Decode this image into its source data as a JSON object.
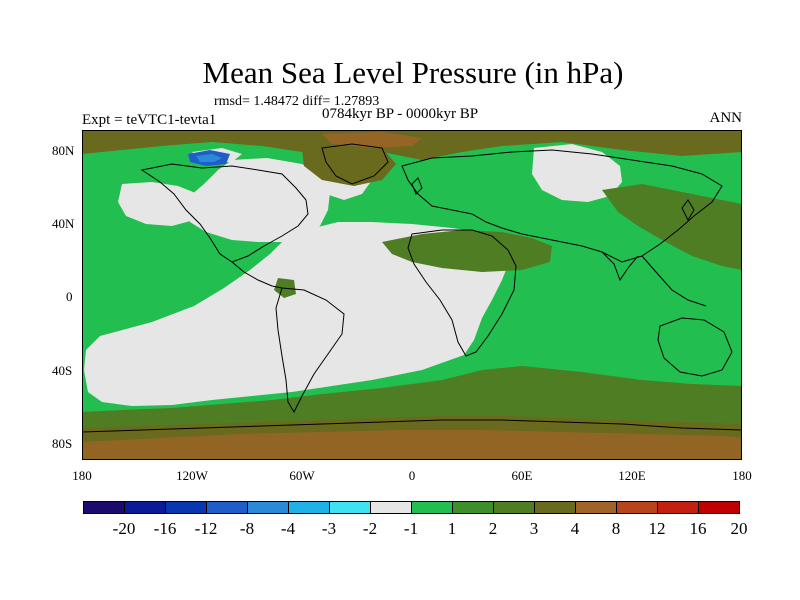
{
  "title": "Mean Sea Level Pressure (in hPa)",
  "stats_text": "rmsd= 1.48472 diff= 1.27893",
  "period_text": "0784kyr BP - 0000kyr BP",
  "experiment_text": "Expt = teVTC1-tevta1",
  "season_text": "ANN",
  "lat_ticks": [
    "80N",
    "40N",
    "0",
    "40S",
    "80S"
  ],
  "lon_ticks": [
    "180",
    "120W",
    "60W",
    "0",
    "60E",
    "120E",
    "180"
  ],
  "colorbar": {
    "labels": [
      "-20",
      "-16",
      "-12",
      "-8",
      "-4",
      "-3",
      "-2",
      "-1",
      "1",
      "2",
      "3",
      "4",
      "8",
      "12",
      "16",
      "20"
    ],
    "colors": [
      "#1c0a6e",
      "#0b1a95",
      "#0a36b0",
      "#1f5ec8",
      "#2a8ad8",
      "#20b2e6",
      "#3fe2ee",
      "#e6e6e6",
      "#22bf50",
      "#3d8f2b",
      "#4f7d24",
      "#6a6a1e",
      "#a06428",
      "#b8441c",
      "#c22010",
      "#c00000"
    ]
  },
  "map_colors": {
    "grey": "#e6e6e6",
    "light_green": "#22bf50",
    "mid_green": "#3d8f2b",
    "olive": "#6a6a1e",
    "brown": "#a06428",
    "blue": "#1f5ec8",
    "coast": "#000000"
  }
}
